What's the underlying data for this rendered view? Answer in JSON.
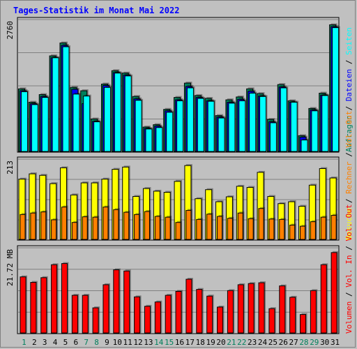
{
  "title": "Tages-Statistik im Monat Mai 2022",
  "colors": {
    "background": "#c0c0c0",
    "panel_border": "#000000",
    "gridline": "#808080",
    "title": "#0000ff",
    "hits": "#00805c",
    "files": "#0000ff",
    "pages": "#00ffff",
    "visits": "#ffff00",
    "sites": "#ff8000",
    "volume": "#ff0000",
    "weekend_label": "#00805c",
    "weekday_label": "#000000"
  },
  "chart_data": [
    {
      "type": "bar",
      "panel": "top",
      "ymax_label": "2760",
      "ylim": [
        0,
        2760
      ],
      "grid": true,
      "categories": [
        "1",
        "2",
        "3",
        "4",
        "5",
        "6",
        "7",
        "8",
        "9",
        "10",
        "11",
        "12",
        "13",
        "14",
        "15",
        "16",
        "17",
        "18",
        "19",
        "20",
        "21",
        "22",
        "23",
        "24",
        "25",
        "26",
        "27",
        "28",
        "29",
        "30",
        "31"
      ],
      "weekend": [
        1,
        7,
        8,
        14,
        15,
        21,
        22,
        28,
        29
      ],
      "series": [
        {
          "name": "Anfragen",
          "color": "#00805c",
          "values": [
            1310,
            1030,
            1190,
            2000,
            2270,
            1340,
            1270,
            680,
            1410,
            1690,
            1640,
            1150,
            510,
            560,
            880,
            1130,
            1430,
            1170,
            1110,
            750,
            1080,
            1140,
            1310,
            1210,
            670,
            1400,
            1060,
            330,
            900,
            1220,
            2650
          ]
        },
        {
          "name": "Dateien",
          "color": "#0000ff",
          "values": [
            1270,
            1000,
            1150,
            1960,
            2220,
            1300,
            1000,
            630,
            1380,
            1650,
            1600,
            1100,
            480,
            530,
            850,
            1080,
            1360,
            1130,
            1060,
            720,
            1030,
            1090,
            1260,
            1160,
            620,
            1350,
            1030,
            300,
            870,
            1180,
            2610
          ]
        },
        {
          "name": "Seiten",
          "color": "#00ffff",
          "values": [
            1250,
            980,
            1130,
            1960,
            2190,
            1200,
            1160,
            620,
            1340,
            1640,
            1580,
            1070,
            470,
            500,
            820,
            1060,
            1330,
            1110,
            1050,
            700,
            1010,
            1060,
            1220,
            1150,
            600,
            1330,
            1030,
            240,
            850,
            1170,
            2590
          ]
        }
      ]
    },
    {
      "type": "bar",
      "panel": "middle",
      "ymax_label": "213",
      "ylim": [
        0,
        213
      ],
      "grid": true,
      "categories": [
        "1",
        "2",
        "3",
        "4",
        "5",
        "6",
        "7",
        "8",
        "9",
        "10",
        "11",
        "12",
        "13",
        "14",
        "15",
        "16",
        "17",
        "18",
        "19",
        "20",
        "21",
        "22",
        "23",
        "24",
        "25",
        "26",
        "27",
        "28",
        "29",
        "30",
        "31"
      ],
      "series": [
        {
          "name": "Besuche",
          "color": "#ffff00",
          "values": [
            160,
            174,
            170,
            148,
            190,
            118,
            150,
            150,
            160,
            186,
            192,
            114,
            135,
            128,
            125,
            154,
            196,
            108,
            132,
            100,
            113,
            141,
            138,
            178,
            114,
            95,
            100,
            88,
            144,
            188,
            163
          ]
        },
        {
          "name": "Rechner",
          "color": "#ff8000",
          "values": [
            66,
            70,
            73,
            52,
            86,
            45,
            60,
            59,
            86,
            79,
            72,
            66,
            74,
            61,
            59,
            45,
            77,
            53,
            67,
            61,
            56,
            70,
            55,
            82,
            54,
            53,
            38,
            35,
            47,
            59,
            64
          ]
        }
      ]
    },
    {
      "type": "bar",
      "panel": "bottom",
      "ymax_label": "21.72 MB",
      "ylim": [
        0,
        21.72
      ],
      "unit": "MB",
      "grid": true,
      "categories": [
        "1",
        "2",
        "3",
        "4",
        "5",
        "6",
        "7",
        "8",
        "9",
        "10",
        "11",
        "12",
        "13",
        "14",
        "15",
        "16",
        "17",
        "18",
        "19",
        "20",
        "21",
        "22",
        "23",
        "24",
        "25",
        "26",
        "27",
        "28",
        "29",
        "30",
        "31"
      ],
      "series": [
        {
          "name": "Volumen",
          "color": "#ff0000",
          "values": [
            14.3,
            12.9,
            14.1,
            17.4,
            17.7,
            9.6,
            9.6,
            6.4,
            12.3,
            16.1,
            15.8,
            9.2,
            6.8,
            7.9,
            9.6,
            10.6,
            13.7,
            11.1,
            9.4,
            6.6,
            10.8,
            12.3,
            12.6,
            12.8,
            6.2,
            12.0,
            9.1,
            4.7,
            10.8,
            17.4,
            20.5
          ]
        }
      ]
    }
  ],
  "right_labels": {
    "top": [
      {
        "text": "Anfragen",
        "color": "#00805c"
      },
      {
        "text": " / ",
        "color": "#000000"
      },
      {
        "text": "Dateien",
        "color": "#0000ff"
      },
      {
        "text": " / ",
        "color": "#000000"
      },
      {
        "text": "Seiten",
        "color": "#00ffff"
      }
    ],
    "middle": [
      {
        "text": "Besuche",
        "color": "#ffff00"
      },
      {
        "text": " / ",
        "color": "#000000"
      },
      {
        "text": "Rechner",
        "color": "#ff8000"
      },
      {
        "text": " / ",
        "color": "#000000"
      },
      {
        "text": "Vol. Out",
        "color": "#ff8000"
      }
    ],
    "bottom": [
      {
        "text": "Volumen",
        "color": "#ff0000"
      },
      {
        "text": " / ",
        "color": "#000000"
      },
      {
        "text": "Vol. In",
        "color": "#ff0000"
      },
      {
        "text": " / ",
        "color": "#000000"
      },
      {
        "text": "Vol. Out",
        "color": "#ff0000"
      }
    ]
  }
}
